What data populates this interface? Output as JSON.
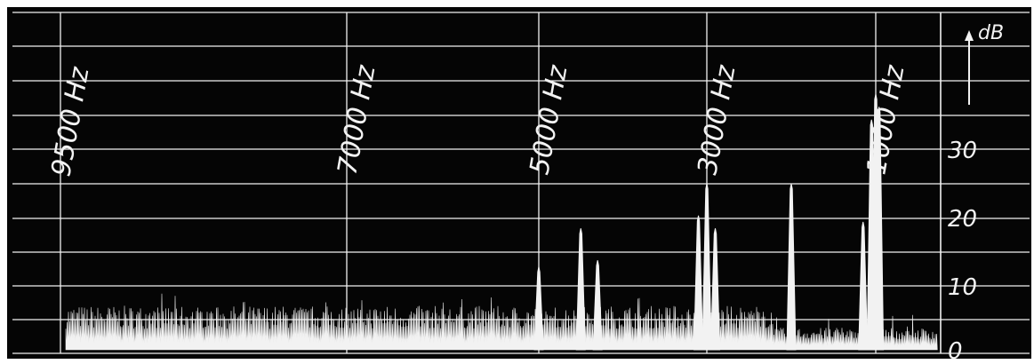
{
  "chart_data": {
    "type": "line",
    "title": "",
    "xlabel": "",
    "ylabel": "dB",
    "x_reverse": true,
    "xlim": [
      0,
      9500
    ],
    "ylim": [
      0,
      40
    ],
    "grid": true,
    "background": "#050505",
    "foreground": "#f2f2f2",
    "x_markers": [
      {
        "x": 9500,
        "label": "9500 Hz"
      },
      {
        "x": 7000,
        "label": "7000 Hz"
      },
      {
        "x": 5000,
        "label": "5000 Hz"
      },
      {
        "x": 3000,
        "label": "3000 Hz"
      },
      {
        "x": 1000,
        "label": "1000 Hz"
      }
    ],
    "y_ticks": [
      {
        "y": 0,
        "label": "0"
      },
      {
        "y": 10,
        "label": "10"
      },
      {
        "y": 20,
        "label": "20"
      },
      {
        "y": 30,
        "label": "30"
      }
    ],
    "ylabel_text": "dB",
    "noise_floor_db": 6,
    "series": [
      {
        "values": [
          [
            9500,
            6
          ],
          [
            9000,
            7
          ],
          [
            8500,
            6
          ],
          [
            8000,
            8
          ],
          [
            7500,
            7
          ],
          [
            7000,
            9
          ],
          [
            6500,
            7
          ],
          [
            6000,
            8
          ],
          [
            5500,
            7
          ],
          [
            5000,
            13
          ],
          [
            4800,
            7
          ],
          [
            4500,
            19
          ],
          [
            4300,
            14
          ],
          [
            4000,
            8
          ],
          [
            3500,
            7
          ],
          [
            3100,
            21
          ],
          [
            3000,
            26
          ],
          [
            2900,
            19
          ],
          [
            2500,
            5
          ],
          [
            2000,
            26
          ],
          [
            1800,
            4
          ],
          [
            1500,
            3
          ],
          [
            1150,
            20
          ],
          [
            1050,
            36
          ],
          [
            1000,
            40
          ],
          [
            950,
            38
          ],
          [
            900,
            5
          ],
          [
            500,
            5
          ],
          [
            200,
            4
          ]
        ]
      }
    ]
  }
}
